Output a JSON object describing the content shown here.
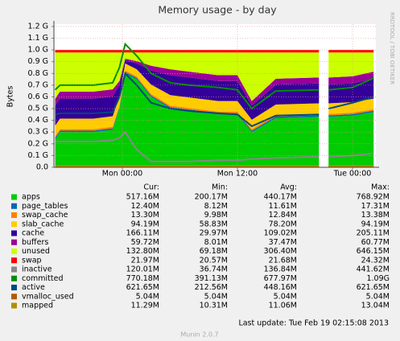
{
  "chart_data": {
    "type": "area",
    "title": "Memory usage - by day",
    "y_label": "Bytes",
    "side_text": "RRDTOOL / TOBI OETIKER",
    "footer": "Last update:  Tue Feb 19 02:15:08 2013",
    "version": "Munin 2.0.7",
    "grid": true,
    "x": [
      -7,
      -6.5,
      -3,
      -1,
      -0.3,
      0.3,
      1.5,
      3,
      5,
      7,
      10,
      12,
      13.5,
      16,
      20.5,
      21,
      21.5,
      24,
      26.2
    ],
    "xlim": [
      -7.13,
      26.43
    ],
    "xticks": [
      {
        "value": 0,
        "label": "Mon 00:00"
      },
      {
        "value": 12,
        "label": "Mon 12:00"
      },
      {
        "value": 24,
        "label": "Tue 00:00"
      }
    ],
    "ylim": [
      0,
      1.22
    ],
    "yticks": [
      {
        "value": 0,
        "label": "0.0"
      },
      {
        "value": 0.1,
        "label": "0.1 G"
      },
      {
        "value": 0.2,
        "label": "0.2 G"
      },
      {
        "value": 0.3,
        "label": "0.3 G"
      },
      {
        "value": 0.4,
        "label": "0.4 G"
      },
      {
        "value": 0.5,
        "label": "0.5 G"
      },
      {
        "value": 0.6,
        "label": "0.6 G"
      },
      {
        "value": 0.7,
        "label": "0.7 G"
      },
      {
        "value": 0.8,
        "label": "0.8 G"
      },
      {
        "value": 0.9,
        "label": "0.9 G"
      },
      {
        "value": 1.0,
        "label": "1.0 G"
      },
      {
        "value": 1.1,
        "label": "1.1 G"
      },
      {
        "value": 1.2,
        "label": "1.2 G"
      }
    ],
    "stat_headers": [
      "Cur:",
      "Min:",
      "Avg:",
      "Max:"
    ],
    "series": [
      {
        "name": "apps",
        "color": "#00cc00",
        "stack": true,
        "values": [
          0.24,
          0.3,
          0.3,
          0.32,
          0.5,
          0.8,
          0.75,
          0.6,
          0.5,
          0.48,
          0.45,
          0.45,
          0.3,
          0.42,
          0.43,
          null,
          0.43,
          0.44,
          0.47
        ],
        "stats": [
          "517.16M",
          "200.17M",
          "440.17M",
          "768.92M"
        ]
      },
      {
        "name": "page_tables",
        "color": "#0066b3",
        "stack": true,
        "values": [
          0.012,
          0.012,
          0.012,
          0.012,
          0.012,
          0.012,
          0.012,
          0.012,
          0.012,
          0.012,
          0.012,
          0.012,
          0.012,
          0.012,
          0.012,
          null,
          0.012,
          0.012,
          0.012
        ],
        "stats": [
          "12.40M",
          "8.12M",
          "11.61M",
          "17.31M"
        ]
      },
      {
        "name": "swap_cache",
        "color": "#ff8000",
        "stack": true,
        "values": [
          0.013,
          0.013,
          0.013,
          0.013,
          0.013,
          0.013,
          0.013,
          0.013,
          0.013,
          0.013,
          0.013,
          0.013,
          0.013,
          0.013,
          0.013,
          null,
          0.013,
          0.013,
          0.013
        ],
        "stats": [
          "13.30M",
          "9.98M",
          "12.84M",
          "13.38M"
        ]
      },
      {
        "name": "slab_cache",
        "color": "#ffcc00",
        "stack": true,
        "values": [
          0.09,
          0.09,
          0.09,
          0.09,
          0.08,
          0.06,
          0.06,
          0.08,
          0.09,
          0.09,
          0.09,
          0.09,
          0.08,
          0.09,
          0.09,
          null,
          0.09,
          0.09,
          0.09
        ],
        "stats": [
          "94.19M",
          "58.83M",
          "78.20M",
          "94.19M"
        ]
      },
      {
        "name": "cache",
        "color": "#330099",
        "stack": true,
        "values": [
          0.17,
          0.17,
          0.17,
          0.17,
          0.1,
          0.03,
          0.05,
          0.12,
          0.17,
          0.17,
          0.17,
          0.17,
          0.12,
          0.17,
          0.17,
          null,
          0.16,
          0.16,
          0.17
        ],
        "stats": [
          "166.11M",
          "29.97M",
          "109.02M",
          "205.11M"
        ]
      },
      {
        "name": "buffers",
        "color": "#990099",
        "stack": true,
        "values": [
          0.06,
          0.06,
          0.06,
          0.06,
          0.03,
          0.01,
          0.02,
          0.04,
          0.05,
          0.05,
          0.05,
          0.05,
          0.04,
          0.05,
          0.05,
          null,
          0.06,
          0.06,
          0.06
        ],
        "stats": [
          "59.72M",
          "8.01M",
          "37.47M",
          "60.77M"
        ]
      },
      {
        "name": "unused",
        "color": "#ccff00",
        "stack": true,
        "values": [
          0.393,
          0.333,
          0.333,
          0.313,
          0.243,
          0.053,
          0.073,
          0.113,
          0.143,
          0.163,
          0.193,
          0.193,
          0.413,
          0.223,
          0.213,
          null,
          0.213,
          0.203,
          0.163
        ],
        "stats": [
          "132.80M",
          "69.18M",
          "306.40M",
          "646.15M"
        ]
      },
      {
        "name": "swap",
        "color": "#ff0000",
        "stack": true,
        "values": [
          0.022,
          0.022,
          0.022,
          0.022,
          0.022,
          0.022,
          0.022,
          0.022,
          0.022,
          0.022,
          0.022,
          0.022,
          0.022,
          0.022,
          0.022,
          null,
          0.022,
          0.022,
          0.022
        ],
        "stats": [
          "21.97M",
          "20.57M",
          "21.68M",
          "24.32M"
        ]
      },
      {
        "name": "inactive",
        "color": "#888888",
        "stack": false,
        "values": [
          0.22,
          0.22,
          0.22,
          0.23,
          0.25,
          0.3,
          0.15,
          0.05,
          0.05,
          0.05,
          0.06,
          0.06,
          0.07,
          0.08,
          0.09,
          null,
          0.09,
          0.1,
          0.12
        ],
        "stats": [
          "120.01M",
          "36.74M",
          "136.84M",
          "441.62M"
        ]
      },
      {
        "name": "committed",
        "color": "#008f00",
        "stack": false,
        "values": [
          0.66,
          0.7,
          0.7,
          0.72,
          0.85,
          1.05,
          0.95,
          0.8,
          0.72,
          0.7,
          0.68,
          0.66,
          0.5,
          0.65,
          0.66,
          null,
          0.66,
          0.68,
          0.76
        ],
        "stats": [
          "770.18M",
          "391.13M",
          "677.97M",
          "1.09G"
        ]
      },
      {
        "name": "active",
        "color": "#00487d",
        "stack": false,
        "values": [
          0.45,
          0.46,
          0.46,
          0.47,
          0.6,
          0.8,
          0.7,
          0.55,
          0.5,
          0.48,
          0.46,
          0.45,
          0.35,
          0.44,
          0.45,
          null,
          0.5,
          0.55,
          0.6
        ],
        "stats": [
          "621.65M",
          "212.56M",
          "448.16M",
          "621.65M"
        ]
      },
      {
        "name": "vmalloc_used",
        "color": "#b35a00",
        "stack": false,
        "values": [
          0.005,
          0.005,
          0.005,
          0.005,
          0.005,
          0.005,
          0.005,
          0.005,
          0.005,
          0.005,
          0.005,
          0.005,
          0.005,
          0.005,
          0.005,
          null,
          0.005,
          0.005,
          0.005
        ],
        "stats": [
          "5.04M",
          "5.04M",
          "5.04M",
          "5.04M"
        ]
      },
      {
        "name": "mapped",
        "color": "#b38f00",
        "stack": false,
        "values": [
          0.011,
          0.011,
          0.011,
          0.011,
          0.011,
          0.011,
          0.011,
          0.011,
          0.011,
          0.011,
          0.011,
          0.011,
          0.011,
          0.011,
          0.011,
          null,
          0.011,
          0.011,
          0.011
        ],
        "stats": [
          "11.29M",
          "10.31M",
          "11.06M",
          "13.04M"
        ]
      }
    ]
  }
}
